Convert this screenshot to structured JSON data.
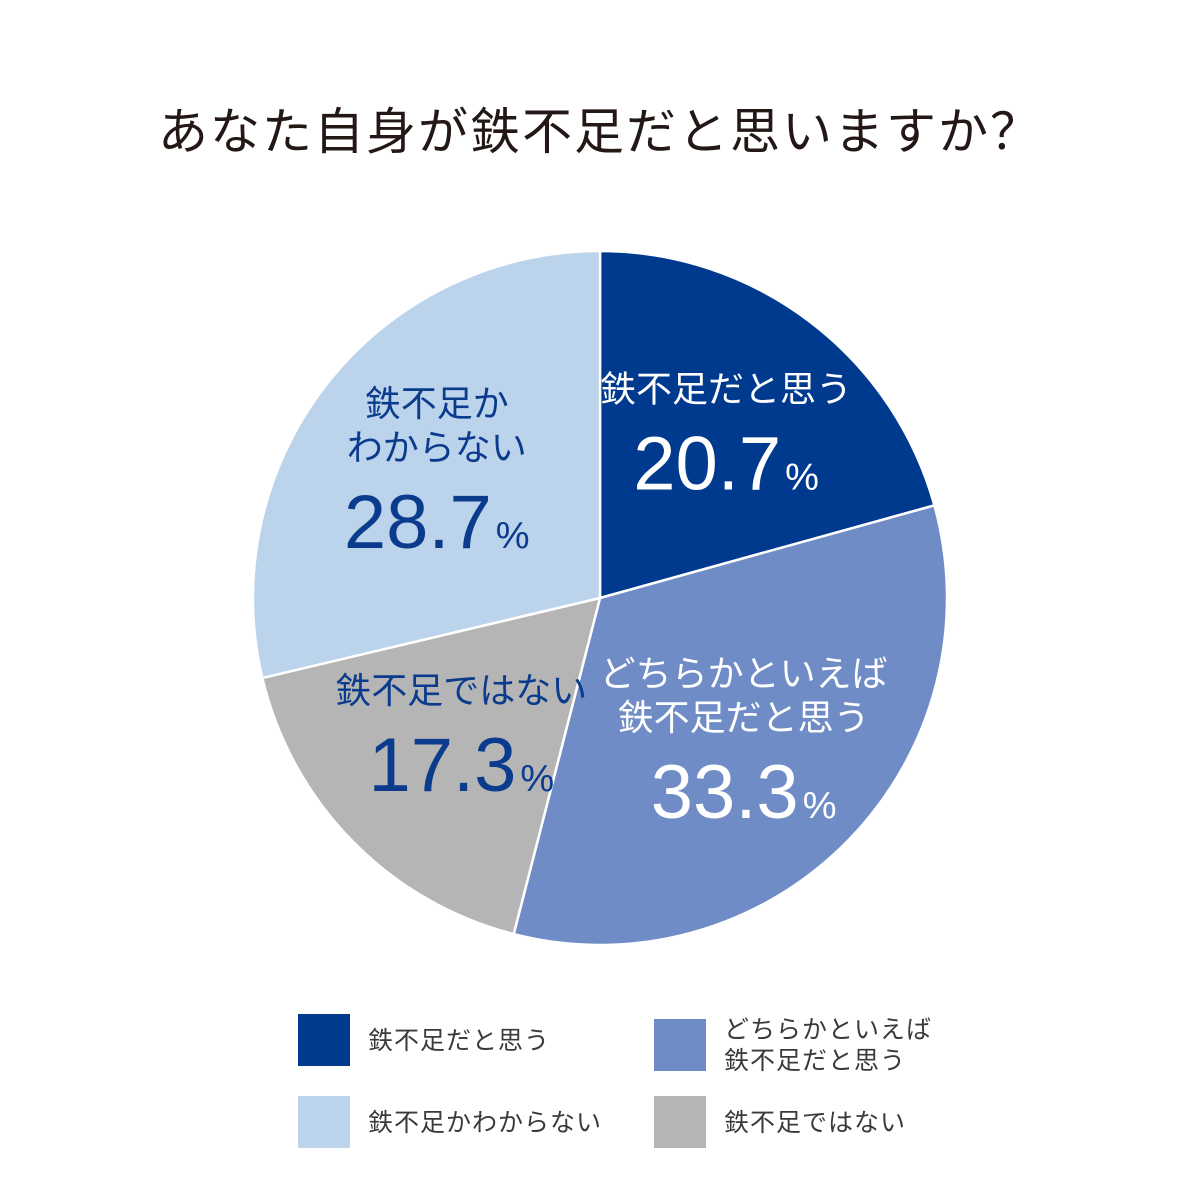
{
  "title": "あなた自身が鉄不足だと思いますか？",
  "chart_data": {
    "type": "pie",
    "start_angle_deg": 0,
    "direction": "clockwise",
    "slices": [
      {
        "label": "鉄不足だと思う",
        "label_lines": [
          "鉄不足だと思う"
        ],
        "value": 20.7,
        "value_text": "20.7",
        "unit": "%",
        "color": "#003a8f",
        "text_color": "#ffffff"
      },
      {
        "label": "どちらかといえば\n鉄不足だと思う",
        "label_lines": [
          "どちらかといえば",
          "鉄不足だと思う"
        ],
        "value": 33.3,
        "value_text": "33.3",
        "unit": "%",
        "color": "#6f8cc6",
        "text_color": "#ffffff"
      },
      {
        "label": "鉄不足ではない",
        "label_lines": [
          "鉄不足ではない"
        ],
        "value": 17.3,
        "value_text": "17.3",
        "unit": "%",
        "color": "#b5b5b5",
        "text_color": "#0a3b8c"
      },
      {
        "label": "鉄不足かわからない",
        "label_lines": [
          "鉄不足か",
          "わからない"
        ],
        "value": 28.7,
        "value_text": "28.7",
        "unit": "%",
        "color": "#bcd3ec",
        "text_color": "#0a3b8c"
      }
    ],
    "legend": [
      {
        "label": "鉄不足だと思う",
        "color": "#003a8f"
      },
      {
        "label": "どちらかといえば\n鉄不足だと思う",
        "color": "#6f8cc6"
      },
      {
        "label": "鉄不足かわからない",
        "color": "#bcd3ec"
      },
      {
        "label": "鉄不足ではない",
        "color": "#b5b5b5"
      }
    ],
    "legend_placement": "bottom"
  }
}
